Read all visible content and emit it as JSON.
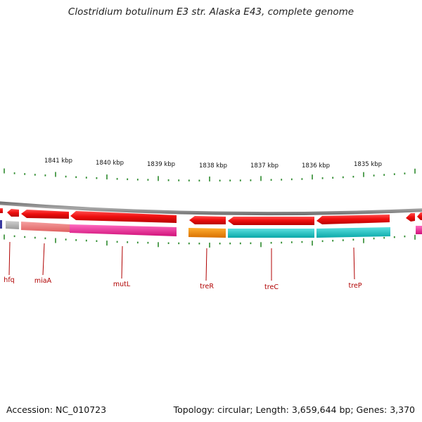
{
  "title": "Clostridium botulinum E3 str. Alaska E43, complete genome",
  "footer": {
    "accession_label": "Accession: NC_010723",
    "topology_label": "Topology: circular; Length: 3,659,644 bp; Genes: 3,370"
  },
  "scale": {
    "tick_labels": [
      {
        "text": "1841 kbp",
        "kbp": 1841
      },
      {
        "text": "1840 kbp",
        "kbp": 1840
      },
      {
        "text": "1839 kbp",
        "kbp": 1839
      },
      {
        "text": "1838 kbp",
        "kbp": 1838
      },
      {
        "text": "1837 kbp",
        "kbp": 1837
      },
      {
        "text": "1836 kbp",
        "kbp": 1836
      },
      {
        "text": "1835 kbp",
        "kbp": 1835
      }
    ]
  },
  "gene_labels": [
    {
      "name": "hfq"
    },
    {
      "name": "miaA"
    },
    {
      "name": "mutL"
    },
    {
      "name": "treR"
    },
    {
      "name": "treC"
    },
    {
      "name": "treP"
    }
  ],
  "colors": {
    "cds": "#ee1111",
    "backbone": "#8a8a8a",
    "ticks": "#2e8b2e",
    "label_lines": "#b00000",
    "hfq": "#b4b4b4",
    "miaA": "#f08080",
    "mutL": "#ee2a9a",
    "treR": "#f08c00",
    "treC": "#1cc7c7",
    "treP": "#1cc7c7",
    "left_edge": "#3a3aa0"
  }
}
